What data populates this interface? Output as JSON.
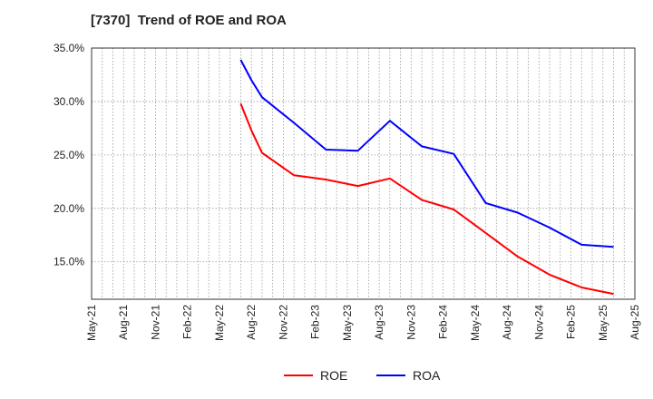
{
  "chart_data": {
    "type": "line",
    "title": "[7370]  Trend of ROE and ROA",
    "x_tick_labels": [
      "May-21",
      "Aug-21",
      "Nov-21",
      "Feb-22",
      "May-22",
      "Aug-22",
      "Nov-22",
      "Feb-23",
      "May-23",
      "Aug-23",
      "Nov-23",
      "Feb-24",
      "May-24",
      "Aug-24",
      "Nov-24",
      "Feb-25",
      "May-25",
      "Aug-25"
    ],
    "y_tick_labels": [
      "15.0%",
      "20.0%",
      "25.0%",
      "30.0%",
      "35.0%"
    ],
    "y_ticks": [
      15,
      20,
      25,
      30,
      35
    ],
    "ylim": [
      11.5,
      35
    ],
    "grid": true,
    "legend_position": "bottom-center",
    "series": [
      {
        "name": "ROE",
        "color": "#ff0000",
        "points": [
          [
            "Jul-22",
            29.8
          ],
          [
            "Aug-22",
            27.3
          ],
          [
            "Sep-22",
            25.2
          ],
          [
            "Dec-22",
            23.1
          ],
          [
            "Mar-23",
            22.7
          ],
          [
            "Jun-23",
            22.1
          ],
          [
            "Sep-23",
            22.8
          ],
          [
            "Dec-23",
            20.8
          ],
          [
            "Mar-24",
            19.9
          ],
          [
            "Jun-24",
            17.7
          ],
          [
            "Sep-24",
            15.5
          ],
          [
            "Dec-24",
            13.8
          ],
          [
            "Mar-25",
            12.6
          ],
          [
            "Jun-25",
            12.0
          ]
        ]
      },
      {
        "name": "ROA",
        "color": "#0000ff",
        "points": [
          [
            "Jul-22",
            33.9
          ],
          [
            "Aug-22",
            32.0
          ],
          [
            "Sep-22",
            30.4
          ],
          [
            "Dec-22",
            28.0
          ],
          [
            "Mar-23",
            25.5
          ],
          [
            "Jun-23",
            25.4
          ],
          [
            "Sep-23",
            28.2
          ],
          [
            "Dec-23",
            25.8
          ],
          [
            "Mar-24",
            25.1
          ],
          [
            "Jun-24",
            20.5
          ],
          [
            "Sep-24",
            19.6
          ],
          [
            "Dec-24",
            18.2
          ],
          [
            "Mar-25",
            16.6
          ],
          [
            "Jun-25",
            16.4
          ]
        ]
      }
    ]
  }
}
